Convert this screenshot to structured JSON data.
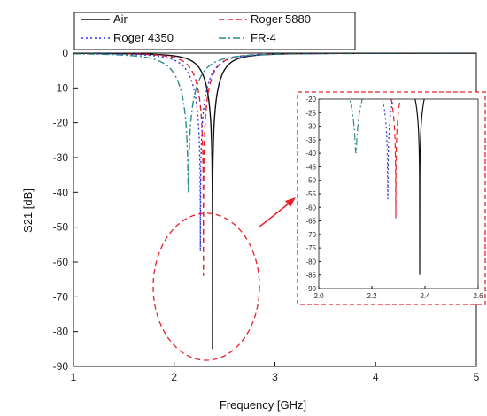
{
  "chart_data": {
    "type": "line",
    "xlabel": "Frequency [GHz]",
    "ylabel": "S21 [dB]",
    "xlim": [
      1,
      5
    ],
    "ylim": [
      -90,
      0
    ],
    "xticks": [
      1,
      2,
      3,
      4,
      5
    ],
    "yticks": [
      0,
      -10,
      -20,
      -30,
      -40,
      -50,
      -60,
      -70,
      -80,
      -90
    ],
    "legend": {
      "placement": "top",
      "entries": [
        "Air",
        "Roger 5880",
        "Roger 4350",
        "FR-4"
      ]
    },
    "series": [
      {
        "name": "Air",
        "color": "#111111",
        "style": "solid",
        "resonance_ghz": 2.38,
        "min_db": -85,
        "bandwidth_ghz": 0.17
      },
      {
        "name": "Roger 5880",
        "color": "#e8202a",
        "style": "dashed",
        "resonance_ghz": 2.29,
        "min_db": -64,
        "bandwidth_ghz": 0.17
      },
      {
        "name": "Roger 4350",
        "color": "#3333dd",
        "style": "dotted",
        "resonance_ghz": 2.26,
        "min_db": -57,
        "bandwidth_ghz": 0.2
      },
      {
        "name": "FR-4",
        "color": "#2b8c8c",
        "style": "dashdot",
        "resonance_ghz": 2.14,
        "min_db": -40,
        "bandwidth_ghz": 0.24
      }
    ],
    "inset": {
      "xlim": [
        2.0,
        2.6
      ],
      "ylim": [
        -90,
        -20
      ],
      "xticks": [
        "2.0",
        "2.2",
        "2.4",
        "2.6"
      ],
      "yticks": [
        "-20",
        "-25",
        "-30",
        "-35",
        "-40",
        "-45",
        "-50",
        "-55",
        "-60",
        "-65",
        "-70",
        "-75",
        "-80",
        "-85",
        "-90"
      ]
    },
    "annotation": {
      "type": "dashed-ellipse-with-arrow",
      "color": "#e8202a",
      "target": "inset"
    }
  }
}
